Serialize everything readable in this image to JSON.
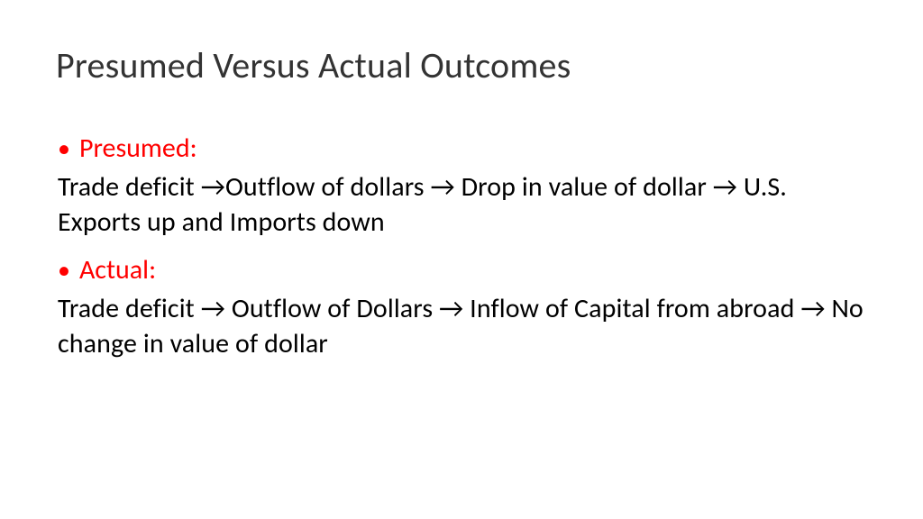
{
  "slide": {
    "title": "Presumed Versus Actual Outcomes",
    "background_color": "#ffffff",
    "title_color": "#333333",
    "title_fontsize": 40,
    "accent_color": "#ff0000",
    "body_color": "#000000",
    "body_fontsize": 30,
    "bullets": [
      {
        "label": "Presumed:",
        "body": "Trade deficit →Outflow of dollars → Drop in value of dollar → U.S. Exports up and Imports down"
      },
      {
        "label": "Actual:",
        "body": "Trade deficit → Outflow of Dollars → Inflow of Capital from abroad → No change in value of dollar"
      }
    ]
  }
}
